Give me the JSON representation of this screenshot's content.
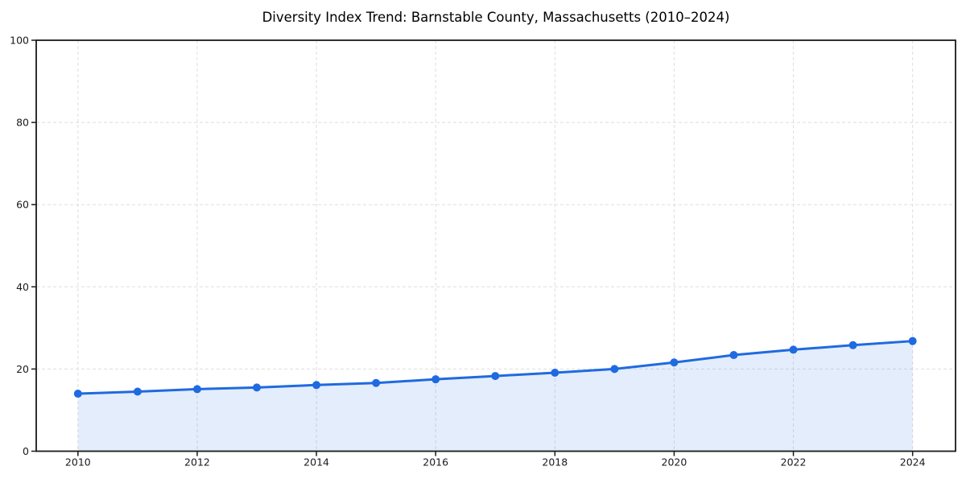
{
  "figure": {
    "background": "#ffffff"
  },
  "chart_data": {
    "type": "line",
    "title": "Diversity Index Trend: Barnstable County, Massachusetts (2010–2024)",
    "x": [
      2010,
      2011,
      2012,
      2013,
      2014,
      2015,
      2016,
      2017,
      2018,
      2019,
      2020,
      2021,
      2022,
      2023,
      2024
    ],
    "series": [
      {
        "name": "Diversity Index",
        "values": [
          14.0,
          14.5,
          15.1,
          15.5,
          16.1,
          16.6,
          17.5,
          18.3,
          19.1,
          20.0,
          21.6,
          23.4,
          24.7,
          25.8,
          26.8
        ]
      }
    ],
    "xlabel": "",
    "ylabel": "",
    "xticks": [
      2010,
      2012,
      2014,
      2016,
      2018,
      2020,
      2022,
      2024
    ],
    "yticks": [
      0,
      20,
      40,
      60,
      80,
      100
    ],
    "xlim": [
      2009.3,
      2024.72
    ],
    "ylim": [
      0,
      100
    ],
    "grid": "dashed",
    "legend": false,
    "area_fill": true,
    "marker": "circle",
    "colors": {
      "line": "#1f6ae0",
      "fill_rgba": "rgba(31,106,224,0.12)",
      "grid": "#dedede",
      "axis": "#1a1a1a",
      "text": "#1a1a1a"
    }
  }
}
